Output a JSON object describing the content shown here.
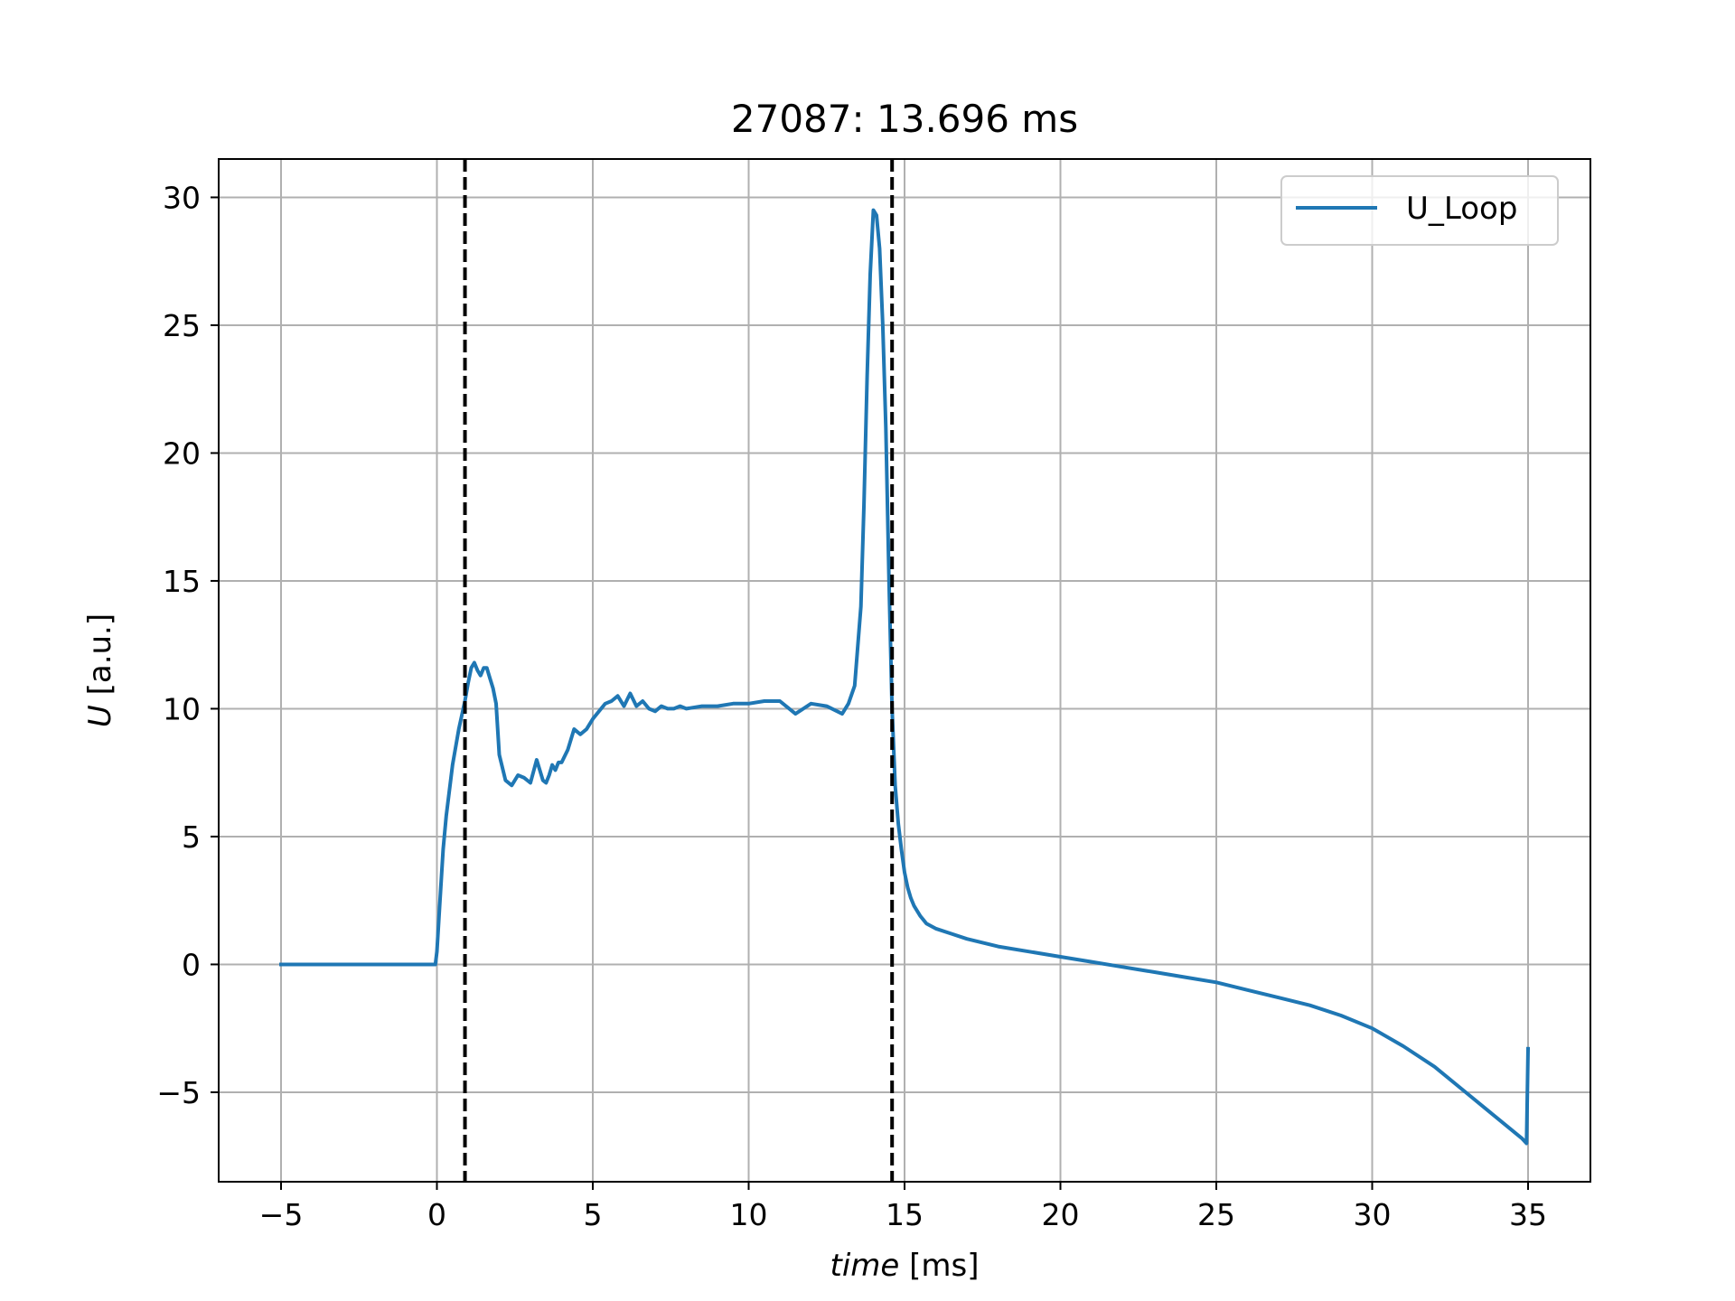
{
  "chart_data": {
    "type": "line",
    "title": "27087: 13.696 ms",
    "xlabel": {
      "italic": "time",
      "rest": " [ms]"
    },
    "ylabel": {
      "italic": "U",
      "rest": " [a.u.]"
    },
    "xlim": [
      -7,
      37
    ],
    "ylim": [
      -8.5,
      31.5
    ],
    "xticks": [
      -5,
      0,
      5,
      10,
      15,
      20,
      25,
      30,
      35
    ],
    "xtick_labels": [
      "−5",
      "0",
      "5",
      "10",
      "15",
      "20",
      "25",
      "30",
      "35"
    ],
    "yticks": [
      -5,
      0,
      5,
      10,
      15,
      20,
      25,
      30
    ],
    "ytick_labels": [
      "−5",
      "0",
      "5",
      "10",
      "15",
      "20",
      "25",
      "30"
    ],
    "grid": true,
    "legend_position": "upper right",
    "vertical_lines": [
      0.9,
      14.6
    ],
    "vertical_line_color": "#000000",
    "series": [
      {
        "name": "U_Loop",
        "color": "#1f77b4",
        "x": [
          -5,
          -4,
          -3,
          -2,
          -1,
          -0.05,
          0,
          0.1,
          0.2,
          0.3,
          0.5,
          0.7,
          0.9,
          1.0,
          1.1,
          1.2,
          1.3,
          1.4,
          1.5,
          1.6,
          1.7,
          1.8,
          1.9,
          2.0,
          2.2,
          2.4,
          2.6,
          2.8,
          3.0,
          3.2,
          3.4,
          3.5,
          3.6,
          3.7,
          3.8,
          3.9,
          4.0,
          4.2,
          4.4,
          4.6,
          4.8,
          5.0,
          5.2,
          5.4,
          5.6,
          5.8,
          6.0,
          6.2,
          6.4,
          6.6,
          6.8,
          7.0,
          7.2,
          7.4,
          7.6,
          7.8,
          8.0,
          8.5,
          9.0,
          9.5,
          10.0,
          10.5,
          11.0,
          11.5,
          12.0,
          12.5,
          13.0,
          13.2,
          13.4,
          13.6,
          13.7,
          13.8,
          13.9,
          14.0,
          14.1,
          14.2,
          14.3,
          14.4,
          14.5,
          14.6,
          14.7,
          14.8,
          14.9,
          15.0,
          15.1,
          15.2,
          15.3,
          15.5,
          15.7,
          16.0,
          16.5,
          17.0,
          18.0,
          19.0,
          20.0,
          21.0,
          22.0,
          23.0,
          24.0,
          25.0,
          26.0,
          27.0,
          28.0,
          29.0,
          30.0,
          31.0,
          32.0,
          33.0,
          34.0,
          34.8,
          34.95,
          35.0
        ],
        "y": [
          0,
          0,
          0,
          0,
          0,
          0,
          0.5,
          2.5,
          4.5,
          5.8,
          7.8,
          9.2,
          10.3,
          11.0,
          11.6,
          11.8,
          11.5,
          11.3,
          11.6,
          11.6,
          11.2,
          10.8,
          10.2,
          8.2,
          7.2,
          7.0,
          7.4,
          7.3,
          7.1,
          8.0,
          7.2,
          7.1,
          7.4,
          7.8,
          7.6,
          7.9,
          7.9,
          8.4,
          9.2,
          9.0,
          9.2,
          9.6,
          9.9,
          10.2,
          10.3,
          10.5,
          10.1,
          10.6,
          10.1,
          10.3,
          10.0,
          9.9,
          10.1,
          10.0,
          10.0,
          10.1,
          10.0,
          10.1,
          10.1,
          10.2,
          10.2,
          10.3,
          10.3,
          9.8,
          10.2,
          10.1,
          9.8,
          10.2,
          10.9,
          14.0,
          18.0,
          23.0,
          27.0,
          29.5,
          29.3,
          28.0,
          25.0,
          21.0,
          15.0,
          10.0,
          7.0,
          5.5,
          4.5,
          3.6,
          3.0,
          2.6,
          2.3,
          1.9,
          1.6,
          1.4,
          1.2,
          1.0,
          0.7,
          0.5,
          0.3,
          0.1,
          -0.1,
          -0.3,
          -0.5,
          -0.7,
          -1.0,
          -1.3,
          -1.6,
          -2.0,
          -2.5,
          -3.2,
          -4.0,
          -5.0,
          -6.0,
          -6.8,
          -7.0,
          -3.3
        ]
      }
    ]
  }
}
